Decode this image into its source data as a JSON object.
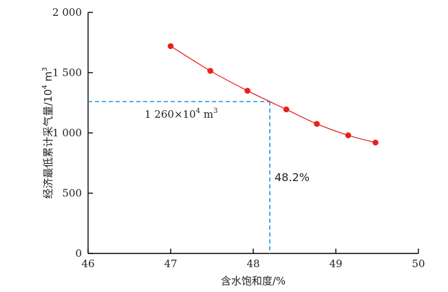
{
  "chart_data": {
    "type": "line",
    "title": "",
    "xlabel": "含水饱和度/%",
    "ylabel_main": "经济最低累计采气量/10",
    "ylabel_sup": "4",
    "ylabel_unit": " m",
    "ylabel_unit_sup": "3",
    "xlim": [
      46,
      50
    ],
    "ylim": [
      0,
      2000
    ],
    "x_ticks": [
      46,
      47,
      48,
      49,
      50
    ],
    "x_tick_labels": [
      "46",
      "47",
      "48",
      "49",
      "50"
    ],
    "y_ticks": [
      0,
      500,
      1000,
      1500,
      2000
    ],
    "y_tick_labels": [
      "0",
      "500",
      "1 000",
      "1 500",
      "2 000"
    ],
    "grid": false,
    "series": [
      {
        "color": "#e8201e",
        "points": [
          {
            "x": 47.0,
            "y": 1720
          },
          {
            "x": 47.48,
            "y": 1515
          },
          {
            "x": 47.93,
            "y": 1350
          },
          {
            "x": 48.4,
            "y": 1195
          },
          {
            "x": 48.77,
            "y": 1075
          },
          {
            "x": 49.15,
            "y": 980
          },
          {
            "x": 49.48,
            "y": 920
          }
        ]
      }
    ],
    "reference": {
      "x": 48.2,
      "y": 1260,
      "color": "#1f8fd8",
      "y_label_main": "1 260×10",
      "y_label_sup": "4",
      "y_label_unit": " m",
      "y_label_unit_sup": "3",
      "x_label": "48.2%"
    }
  }
}
